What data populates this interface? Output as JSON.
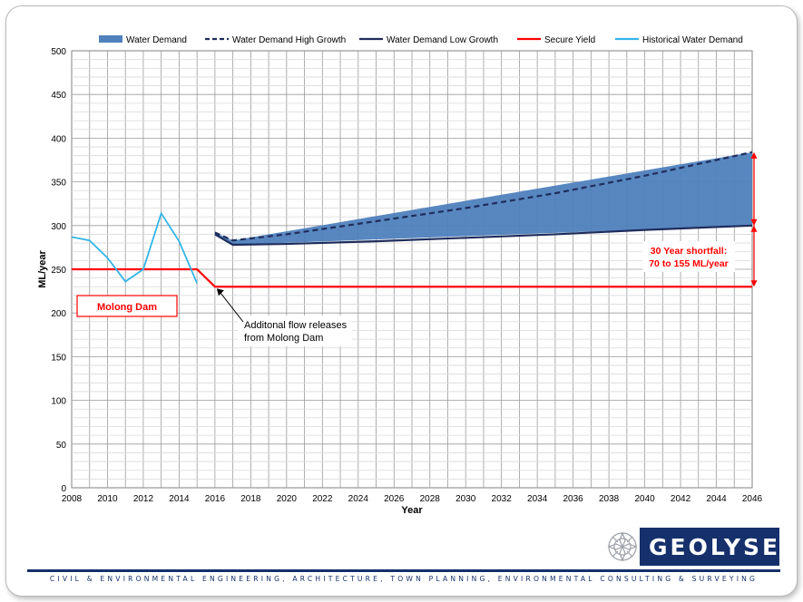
{
  "chart_data": {
    "type": "line",
    "xlabel": "Year",
    "ylabel": "ML/year",
    "xlim": [
      2008,
      2046
    ],
    "ylim": [
      0,
      500
    ],
    "x_ticks": [
      2008,
      2010,
      2012,
      2014,
      2016,
      2018,
      2020,
      2022,
      2024,
      2026,
      2028,
      2030,
      2032,
      2034,
      2036,
      2038,
      2040,
      2042,
      2044,
      2046
    ],
    "y_ticks": [
      0,
      50,
      100,
      150,
      200,
      250,
      300,
      350,
      400,
      450,
      500
    ],
    "grid": true,
    "legend_position": "top",
    "series": [
      {
        "name": "Water Demand",
        "style": "area",
        "color": "#4f81bd",
        "x": [
          2016,
          2017,
          2046
        ],
        "y_low": [
          290,
          278,
          300
        ],
        "y_high": [
          292,
          283,
          384
        ]
      },
      {
        "name": "Water Demand High Growth",
        "style": "dashed",
        "color": "#1f2d5c",
        "x": [
          2016,
          2017,
          2020,
          2025,
          2030,
          2035,
          2040,
          2046
        ],
        "y": [
          292,
          283,
          290,
          305,
          320,
          337,
          357,
          384
        ]
      },
      {
        "name": "Water Demand Low Growth",
        "style": "solid",
        "color": "#1f2d5c",
        "x": [
          2016,
          2017,
          2020,
          2025,
          2030,
          2035,
          2040,
          2046
        ],
        "y": [
          290,
          278,
          279,
          282,
          286,
          290,
          295,
          300
        ]
      },
      {
        "name": "Secure Yield",
        "style": "solid",
        "color": "#ff0000",
        "x": [
          2008,
          2015,
          2016,
          2046
        ],
        "y": [
          250,
          250,
          230,
          230
        ]
      },
      {
        "name": "Historical Water Demand",
        "style": "solid",
        "color": "#33b5e8",
        "x": [
          2008,
          2009,
          2010,
          2011,
          2012,
          2013,
          2014,
          2015
        ],
        "y": [
          287,
          283,
          263,
          236,
          250,
          314,
          282,
          234
        ]
      }
    ],
    "annotations": {
      "molong_dam": "Molong Dam",
      "flow_release_line1": "Additonal flow releases",
      "flow_release_line2": "from Molong Dam",
      "shortfall_line1": "30 Year shortfall:",
      "shortfall_line2": "70 to 155 ML/year",
      "arrow_x": 2046,
      "arrow_top": 384,
      "arrow_mid": 300,
      "arrow_bottom": 230,
      "release_point_x": 2016,
      "release_point_y": 230
    }
  },
  "branding": {
    "logo_text": "GEOLYSE",
    "tagline": "CIVIL & ENVIRONMENTAL ENGINEERING, ARCHITECTURE, TOWN PLANNING, ENVIRONMENTAL CONSULTING & SURVEYING",
    "navy": "#15306b"
  }
}
